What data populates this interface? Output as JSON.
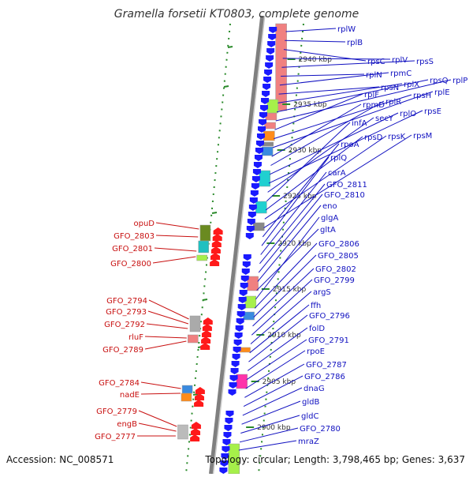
{
  "title": "Gramella forsetii KT0803, complete genome",
  "footer": {
    "accession": "Accession: NC_008571",
    "summary": "Topology: circular; Length: 3,798,465 bp; Genes: 3,637"
  },
  "colors": {
    "forward_label": "#1010c0",
    "reverse_label": "#c81010",
    "forward_gene": "#1a1aff",
    "reverse_gene": "#ff1a1a",
    "backbone": "#7f7f7f",
    "tick_dots": "#2a8a2a"
  },
  "ticks": [
    {
      "label": "2940 kbp"
    },
    {
      "label": "2935 kbp"
    },
    {
      "label": "2930 kbp"
    },
    {
      "label": "2925 kbp"
    },
    {
      "label": "2920 kbp"
    },
    {
      "label": "2915 kbp"
    },
    {
      "label": "2910 kbp"
    },
    {
      "label": "2905 kbp"
    },
    {
      "label": "2900 kbp"
    }
  ],
  "forward_genes": [
    "rplW",
    "rplB",
    "rpsC",
    "rplV",
    "rpsS",
    "rplN",
    "rpmC",
    "rpsN",
    "rplX",
    "rpsQ",
    "rplP",
    "rplF",
    "rpsH",
    "rplE",
    "rpmD",
    "rplR",
    "rplO",
    "rpsE",
    "secY",
    "infA",
    "rpsD",
    "rpsK",
    "rpsM",
    "rpoA",
    "rplQ",
    "carA",
    "GFO_2811",
    "GFO_2810",
    "eno",
    "gltA",
    "glgA",
    "GFO_2806",
    "GFO_2805",
    "GFO_2802",
    "GFO_2799",
    "argS",
    "ffh",
    "GFO_2796",
    "folD",
    "GFO_2791",
    "rpoE",
    "GFO_2787",
    "GFO_2786",
    "dnaG",
    "gldB",
    "gldC",
    "GFO_2780",
    "mraZ"
  ],
  "reverse_genes": [
    "opuD",
    "GFO_2803",
    "GFO_2801",
    "GFO_2800",
    "GFO_2794",
    "GFO_2793",
    "GFO_2792",
    "rluF",
    "GFO_2789",
    "GFO_2784",
    "nadE",
    "GFO_2779",
    "engB",
    "GFO_2777"
  ]
}
